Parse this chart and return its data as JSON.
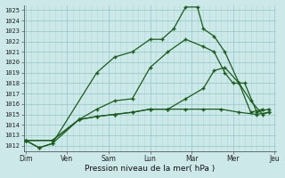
{
  "background_color": "#cce8e8",
  "grid_minor_color": "#aad8d8",
  "grid_major_color": "#99cccc",
  "line_color": "#1a5c1a",
  "xlabel": "Pression niveau de la mer( hPa )",
  "xtick_labels": [
    "Dim",
    "Ven",
    "Sam",
    "Lun",
    "Mar",
    "Mer",
    "Jeu"
  ],
  "ylim": [
    1011.5,
    1025.5
  ],
  "yticks": [
    1012,
    1013,
    1014,
    1015,
    1016,
    1017,
    1018,
    1019,
    1020,
    1021,
    1022,
    1023,
    1024,
    1025
  ],
  "line1_x": [
    0,
    0.38,
    0.75,
    2.0,
    2.5,
    3.0,
    3.5,
    3.83,
    4.16,
    4.5,
    4.83,
    5.0,
    5.3,
    5.6,
    6.0,
    6.33,
    6.66
  ],
  "line1_y": [
    1012.5,
    1011.8,
    1012.2,
    1019.0,
    1020.5,
    1021.0,
    1022.2,
    1022.2,
    1023.2,
    1025.3,
    1025.3,
    1023.2,
    1022.5,
    1021.0,
    1018.0,
    1015.2,
    1015.5
  ],
  "line2_x": [
    0,
    0.38,
    0.75,
    1.5,
    2.0,
    2.5,
    3.0,
    3.5,
    4.0,
    4.5,
    5.0,
    5.3,
    5.6,
    5.83,
    6.16,
    6.5,
    6.83
  ],
  "line2_y": [
    1012.5,
    1011.8,
    1012.2,
    1014.5,
    1015.5,
    1016.3,
    1016.5,
    1019.5,
    1021.0,
    1022.2,
    1021.5,
    1021.0,
    1019.0,
    1018.0,
    1018.0,
    1015.2,
    1015.5
  ],
  "line3_x": [
    0,
    0.75,
    1.5,
    2.0,
    2.5,
    3.0,
    3.5,
    4.0,
    4.5,
    5.0,
    5.5,
    6.0,
    6.5,
    6.83
  ],
  "line3_y": [
    1012.5,
    1012.5,
    1014.5,
    1014.8,
    1015.0,
    1015.2,
    1015.5,
    1015.5,
    1015.5,
    1015.5,
    1015.5,
    1015.2,
    1015.0,
    1015.2
  ],
  "line4_x": [
    0,
    0.75,
    1.5,
    2.0,
    2.5,
    3.0,
    3.5,
    4.0,
    4.5,
    5.0,
    5.3,
    5.6,
    6.0,
    6.33,
    6.66,
    6.83
  ],
  "line4_y": [
    1012.5,
    1012.5,
    1014.5,
    1014.8,
    1015.0,
    1015.2,
    1015.5,
    1015.5,
    1016.5,
    1017.5,
    1019.2,
    1019.5,
    1018.0,
    1016.3,
    1015.0,
    1015.2
  ]
}
